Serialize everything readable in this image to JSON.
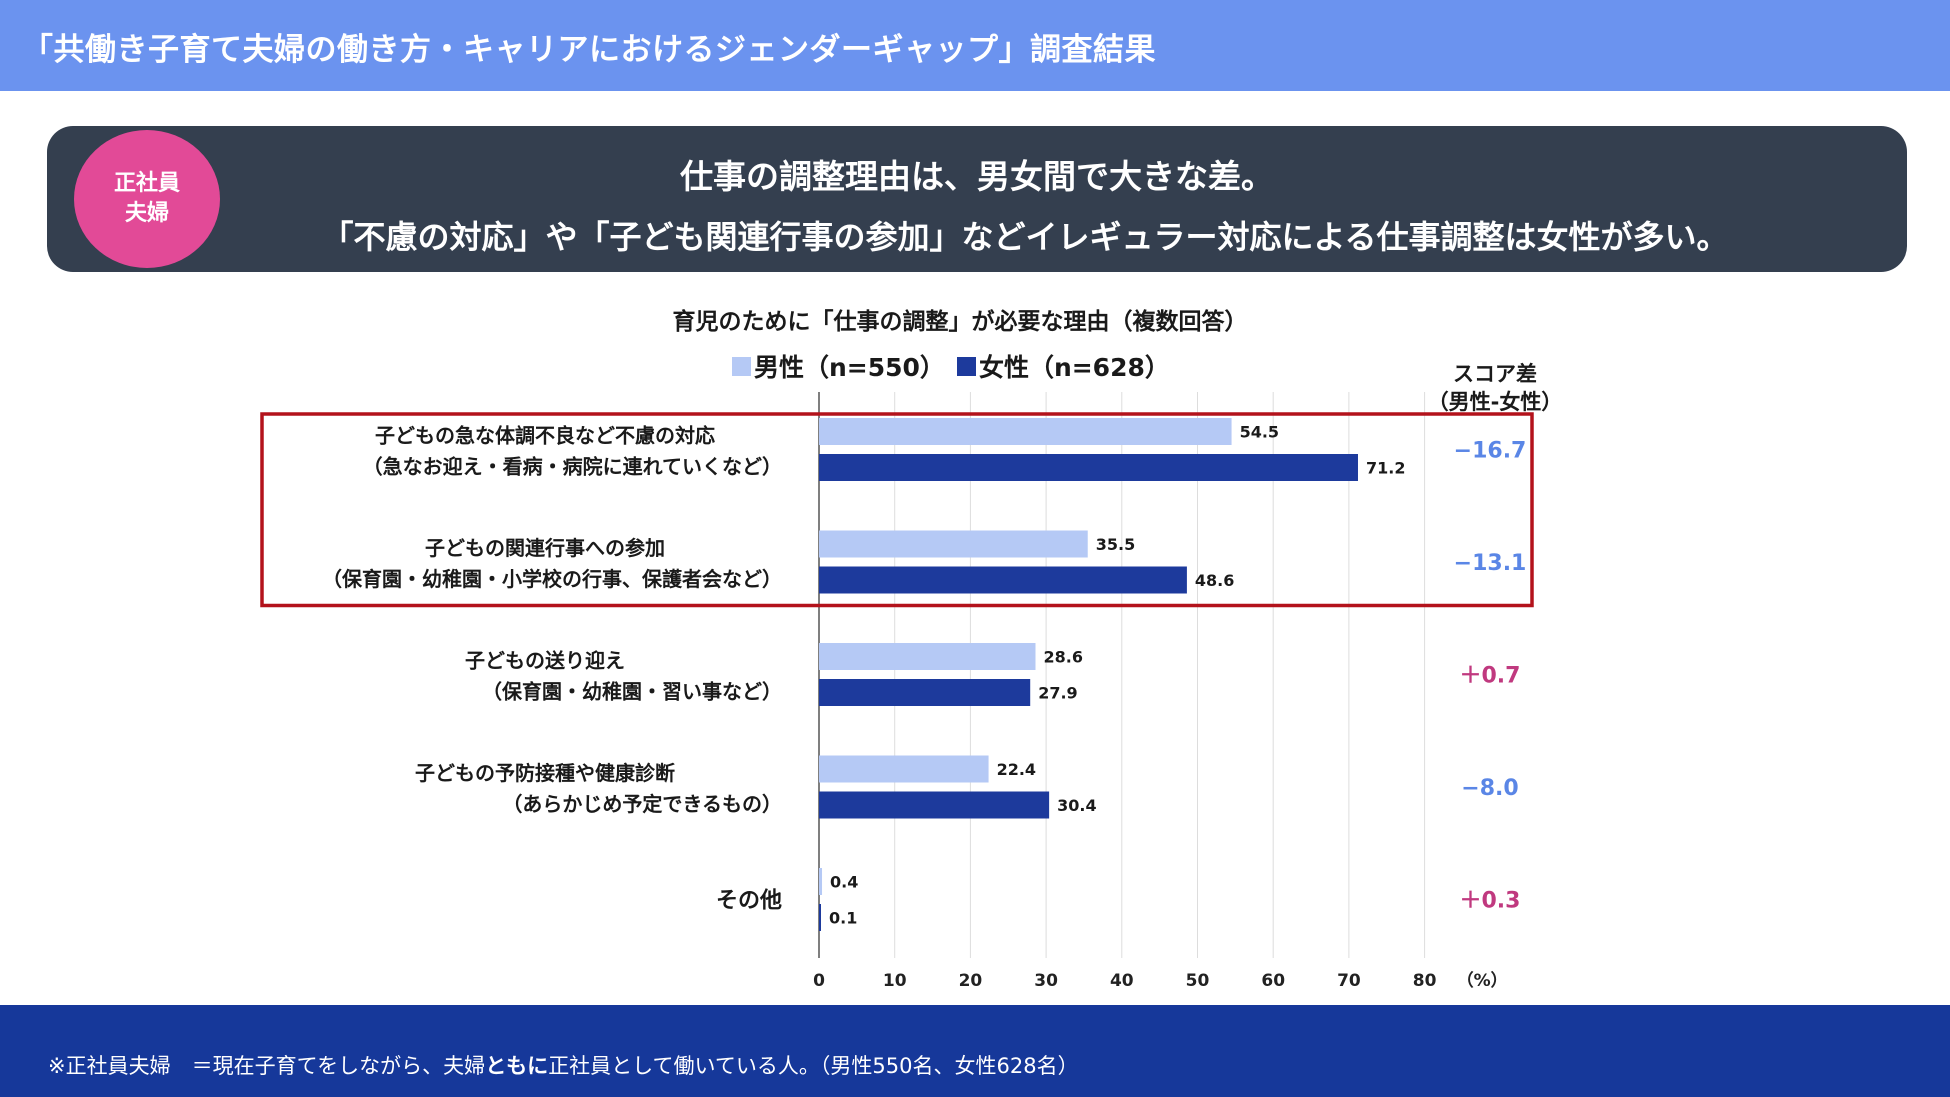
{
  "header": {
    "title": "「共働き子育て夫婦の働き方・キャリアにおけるジェンダーギャップ」調査結果"
  },
  "badge": {
    "line1": "正社員",
    "line2": "夫婦"
  },
  "banner": {
    "line1": "仕事の調整理由は、男女間で大きな差。",
    "line2": "「不慮の対応」や「子ども関連行事の参加」などイレギュラー対応による仕事調整は女性が多い。"
  },
  "score_header": {
    "line1": "スコア差",
    "line2": "（男性-女性）"
  },
  "footer": {
    "prefix": "※正社員夫婦　＝現在子育てをしながら、夫婦",
    "bold": "ともに",
    "suffix": "正社員として働いている人。（男性550名、女性628名）"
  },
  "colors": {
    "male": "#b5c9f5",
    "female": "#1d3a9c",
    "negative_diff": "#5a86e6",
    "positive_diff": "#c0397f",
    "highlight_box": "#b3121b"
  },
  "chart_data": {
    "type": "bar",
    "orientation": "horizontal",
    "title": "育児のために「仕事の調整」が必要な理由（複数回答）",
    "unit_label": "（%）",
    "xlim": [
      0,
      80
    ],
    "xticks": [
      0,
      10,
      20,
      30,
      40,
      50,
      60,
      70,
      80
    ],
    "grid": true,
    "legend_position": "top",
    "categories": [
      {
        "line1": "子どもの急な体調不良など不慮の対応",
        "line2": "（急なお迎え・看病・病院に連れていくなど）"
      },
      {
        "line1": "子どもの関連行事への参加",
        "line2": "（保育園・幼稚園・小学校の行事、保護者会など）"
      },
      {
        "line1": "子どもの送り迎え",
        "line2": "（保育園・幼稚園・習い事など）"
      },
      {
        "line1": "子どもの予防接種や健康診断",
        "line2": "（あらかじめ予定できるもの）"
      },
      {
        "line1": "その他",
        "line2": ""
      }
    ],
    "series": [
      {
        "name": "男性（n=550）",
        "values": [
          54.5,
          35.5,
          28.6,
          22.4,
          0.4
        ]
      },
      {
        "name": "女性（n=628）",
        "values": [
          71.2,
          48.6,
          27.9,
          30.4,
          0.1
        ]
      }
    ],
    "score_diff": [
      "−16.7",
      "−13.1",
      "＋0.7",
      "−8.0",
      "＋0.3"
    ],
    "highlighted_categories": [
      0,
      1
    ]
  }
}
